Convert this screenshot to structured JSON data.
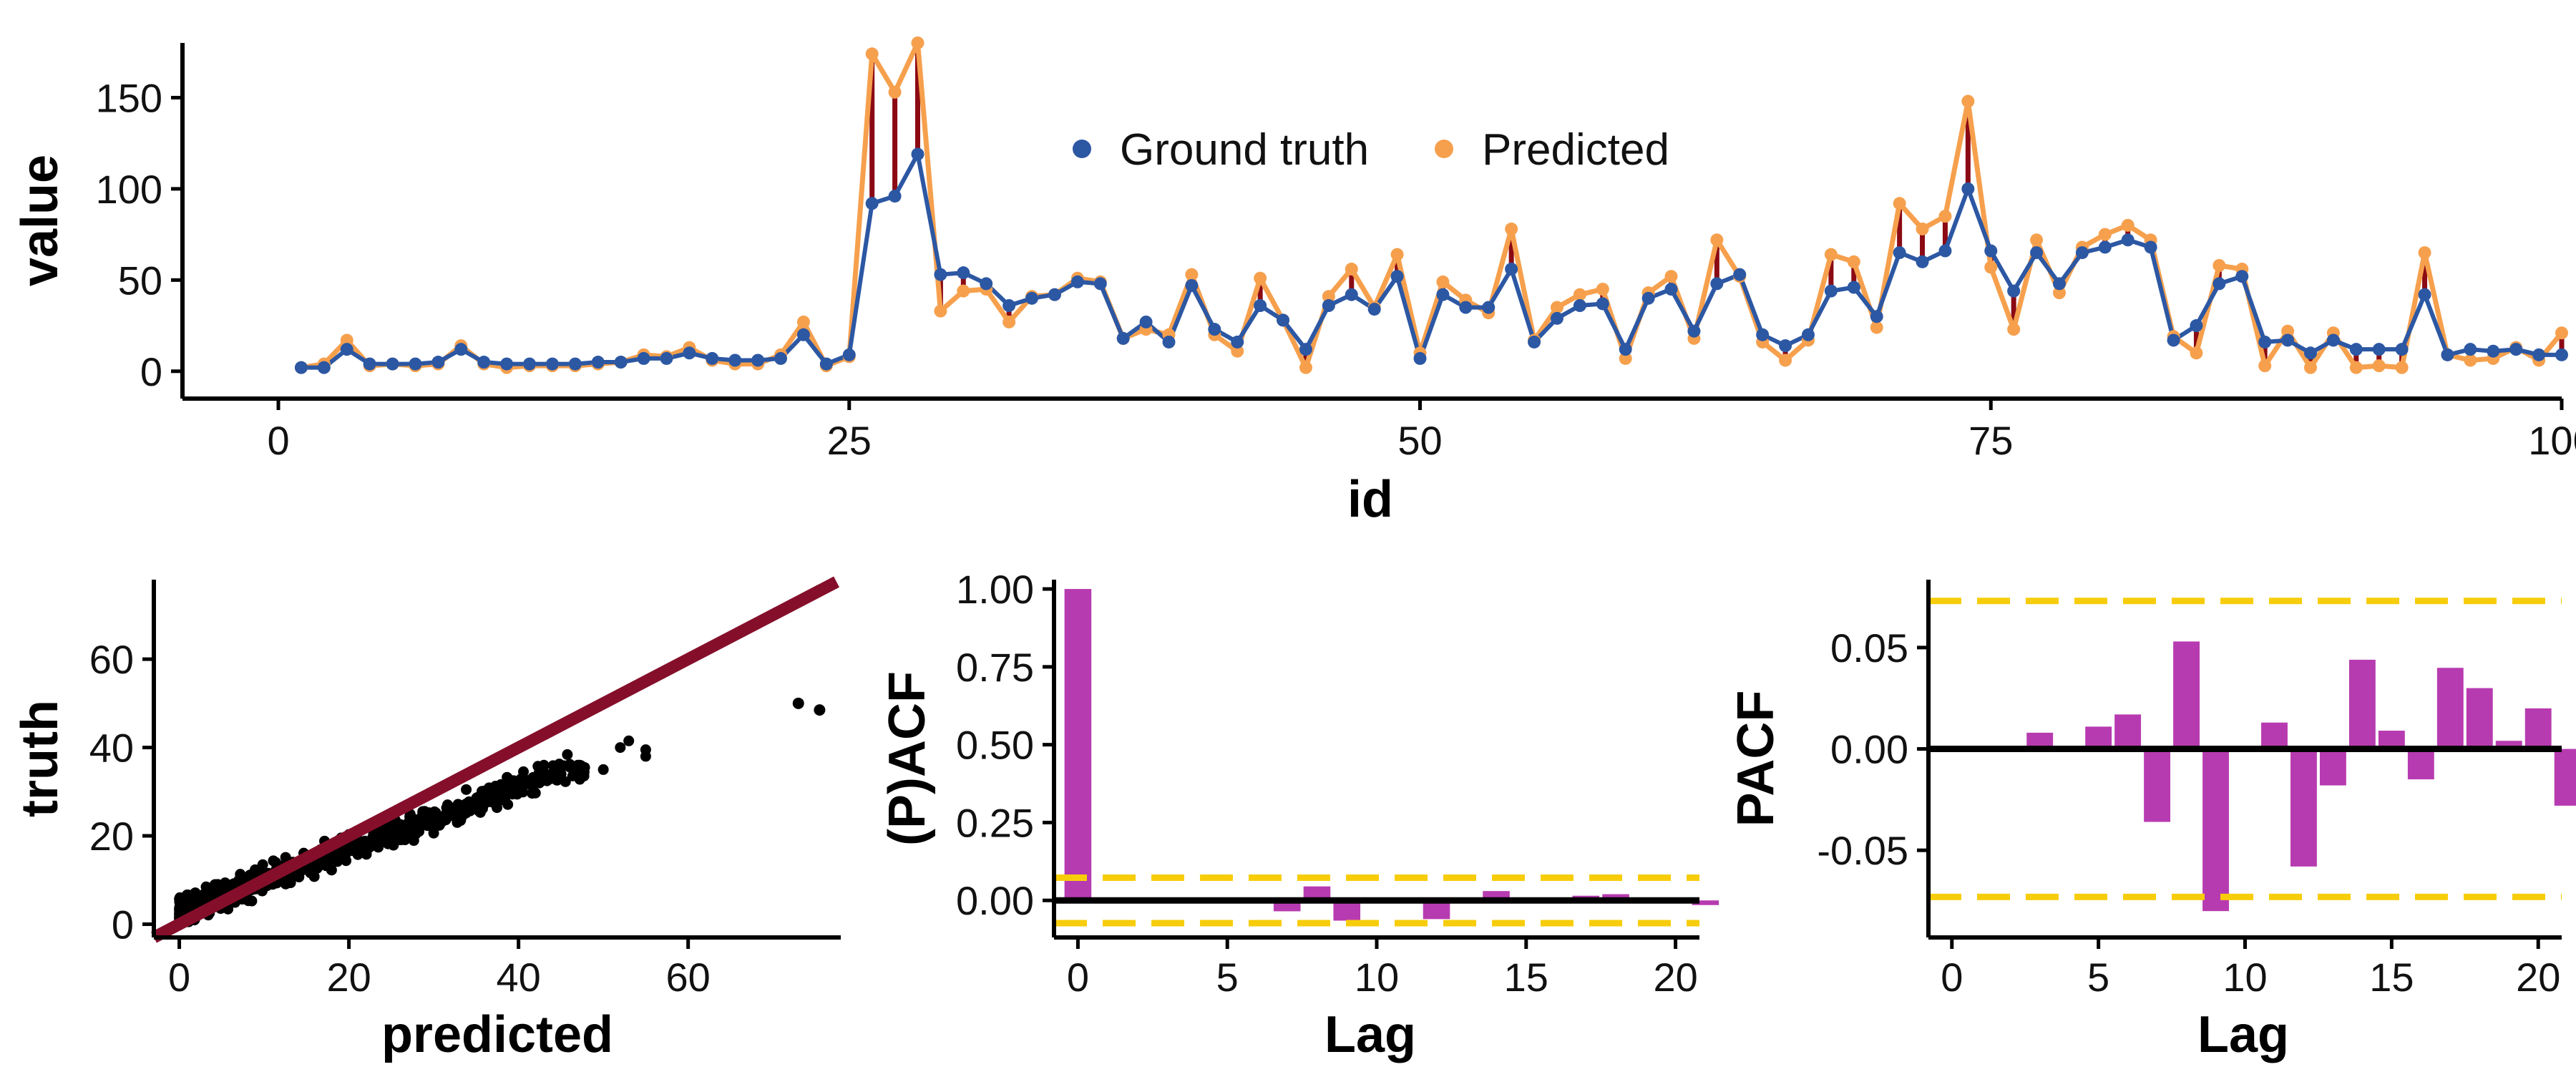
{
  "colors": {
    "ground_truth": "#2c57a3",
    "predicted": "#f6a04d",
    "residual": "#8b0a14",
    "identity_line": "#850f2b",
    "acf_bar": "#b73bb0",
    "conf_band": "#f7cd0b",
    "axis": "#000000",
    "points": "#000000"
  },
  "chart_data": [
    {
      "type": "line",
      "xlabel": "id",
      "ylabel": "value",
      "xlim": [
        0,
        100
      ],
      "ylim": [
        0,
        180
      ],
      "xticks": [
        "0",
        "25",
        "50",
        "75",
        "100"
      ],
      "yticks": [
        "0",
        "50",
        "100",
        "150"
      ],
      "legend": {
        "placement": "top-center",
        "entries": [
          "Ground truth",
          "Predicted"
        ]
      },
      "grid": false,
      "x": [
        1,
        2,
        3,
        4,
        5,
        6,
        7,
        8,
        9,
        10,
        11,
        12,
        13,
        14,
        15,
        16,
        17,
        18,
        19,
        20,
        21,
        22,
        23,
        24,
        25,
        26,
        27,
        28,
        29,
        30,
        31,
        32,
        33,
        34,
        35,
        36,
        37,
        38,
        39,
        40,
        41,
        42,
        43,
        44,
        45,
        46,
        47,
        48,
        49,
        50,
        51,
        52,
        53,
        54,
        55,
        56,
        57,
        58,
        59,
        60,
        61,
        62,
        63,
        64,
        65,
        66,
        67,
        68,
        69,
        70,
        71,
        72,
        73,
        74,
        75,
        76,
        77,
        78,
        79,
        80,
        81,
        82,
        83,
        84,
        85,
        86,
        87,
        88,
        89,
        90,
        91,
        92,
        93,
        94,
        95,
        96,
        97,
        98,
        99,
        100
      ],
      "series": [
        {
          "name": "Ground truth",
          "values": [
            2,
            2,
            12,
            4,
            4,
            4,
            5,
            12,
            5,
            4,
            4,
            4,
            4,
            5,
            5,
            7,
            7,
            10,
            7,
            6,
            6,
            7,
            20,
            4,
            9,
            92,
            96,
            119,
            53,
            54,
            48,
            36,
            40,
            42,
            49,
            48,
            18,
            27,
            16,
            47,
            23,
            16,
            36,
            28,
            12,
            36,
            42,
            34,
            52,
            7,
            42,
            35,
            35,
            56,
            16,
            29,
            36,
            37,
            12,
            40,
            45,
            22,
            48,
            53,
            20,
            14,
            20,
            44,
            46,
            30,
            65,
            60,
            66,
            100,
            66,
            44,
            65,
            48,
            65,
            68,
            72,
            68,
            17,
            25,
            48,
            52,
            16,
            17,
            10,
            17,
            12,
            12,
            12,
            42,
            9,
            12,
            11,
            12,
            9,
            9
          ]
        },
        {
          "name": "Predicted",
          "values": [
            2,
            4,
            17,
            3,
            4,
            3,
            4,
            14,
            4,
            2,
            3,
            3,
            3,
            4,
            5,
            9,
            8,
            13,
            6,
            4,
            4,
            9,
            27,
            3,
            8,
            174,
            153,
            180,
            33,
            44,
            45,
            27,
            41,
            42,
            51,
            49,
            18,
            23,
            20,
            53,
            20,
            11,
            51,
            28,
            2,
            41,
            56,
            35,
            64,
            10,
            49,
            39,
            32,
            78,
            17,
            35,
            42,
            45,
            7,
            43,
            52,
            18,
            72,
            52,
            16,
            6,
            17,
            64,
            60,
            24,
            92,
            78,
            85,
            148,
            57,
            23,
            72,
            43,
            68,
            75,
            80,
            72,
            19,
            10,
            58,
            56,
            3,
            22,
            2,
            21,
            2,
            3,
            2,
            65,
            9,
            6,
            7,
            13,
            6,
            21
          ]
        }
      ]
    },
    {
      "type": "scatter",
      "xlabel": "predicted",
      "ylabel": "truth",
      "xlim": [
        -3,
        78
      ],
      "ylim": [
        -3,
        78
      ],
      "xticks": [
        "0",
        "20",
        "40",
        "60"
      ],
      "yticks": [
        "0",
        "20",
        "40",
        "60"
      ],
      "reference_line": "y = x"
    },
    {
      "type": "bar",
      "xlabel": "Lag",
      "ylabel": "(P)ACF",
      "xlim": [
        -0.8,
        20.8
      ],
      "ylim": [
        -0.1,
        1.03
      ],
      "xticks": [
        "0",
        "5",
        "10",
        "15",
        "20"
      ],
      "yticks": [
        "0.00",
        "0.25",
        "0.50",
        "0.75",
        "1.00"
      ],
      "confidence_band": 0.073,
      "lags": [
        0,
        1,
        2,
        3,
        4,
        5,
        6,
        7,
        8,
        9,
        10,
        11,
        12,
        13,
        14,
        15,
        16,
        17,
        18,
        19,
        20,
        21
      ],
      "values": [
        1.0,
        0.0,
        0.0,
        0.0,
        0.0,
        0.0,
        0.0,
        -0.035,
        0.045,
        -0.065,
        0.0,
        0.0,
        -0.06,
        0.0,
        0.03,
        0.0,
        0.0,
        0.015,
        0.02,
        0.0,
        0.0,
        -0.015
      ]
    },
    {
      "type": "bar",
      "xlabel": "Lag",
      "ylabel": "PACF",
      "xlim": [
        -0.8,
        20.8
      ],
      "ylim": [
        -0.09,
        0.08
      ],
      "xticks": [
        "0",
        "5",
        "10",
        "15",
        "20"
      ],
      "yticks": [
        "-0.05",
        "0.00",
        "0.05"
      ],
      "confidence_band": 0.073,
      "lags": [
        1,
        2,
        3,
        4,
        5,
        6,
        7,
        8,
        9,
        10,
        11,
        12,
        13,
        14,
        15,
        16,
        17,
        18,
        19,
        20,
        21
      ],
      "values": [
        0.0,
        0.0,
        0.008,
        0.0,
        0.011,
        0.017,
        -0.036,
        0.053,
        -0.08,
        0.0,
        0.013,
        -0.058,
        -0.018,
        0.044,
        0.009,
        -0.015,
        0.04,
        0.03,
        0.004,
        0.02,
        -0.028
      ]
    }
  ]
}
